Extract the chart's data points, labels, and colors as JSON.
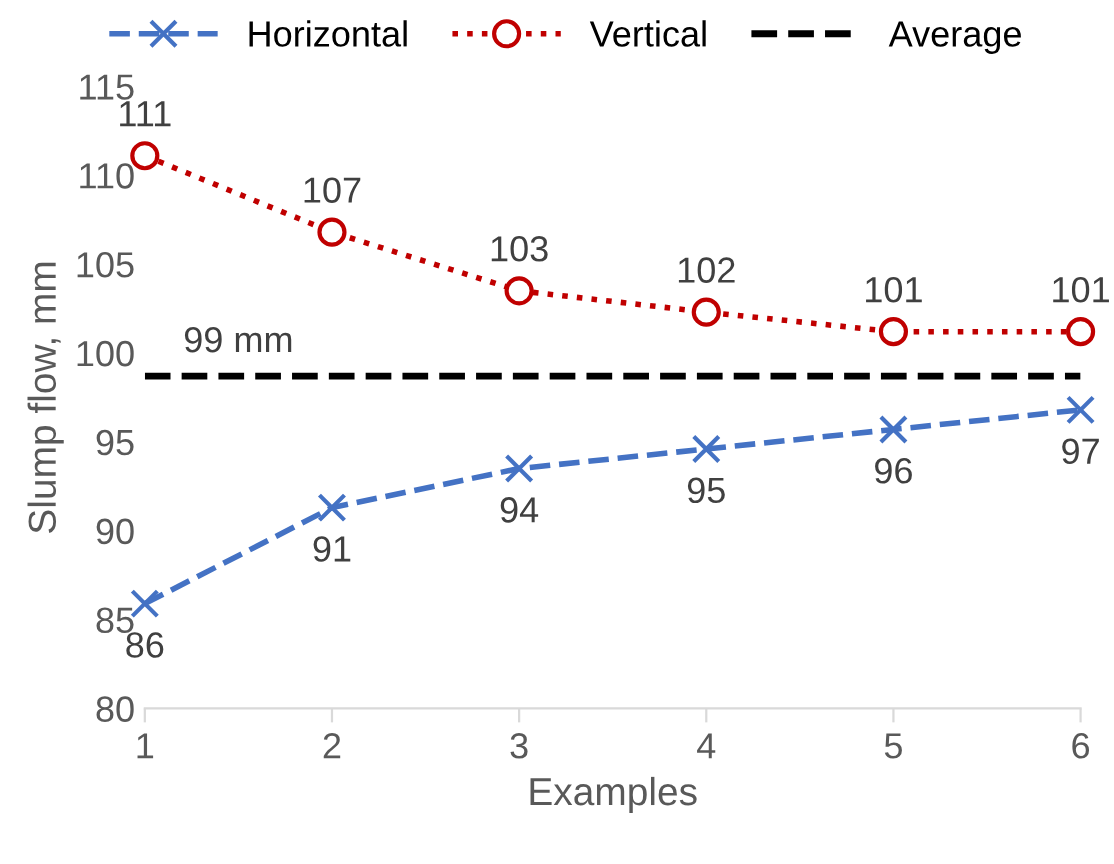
{
  "chart_data": {
    "type": "line",
    "xlabel": "Examples",
    "ylabel": "Slump flow, mm",
    "x": [
      1,
      2,
      3,
      4,
      5,
      6
    ],
    "xlim": [
      1,
      6
    ],
    "xticks": [
      1,
      2,
      3,
      4,
      5,
      6
    ],
    "ylim": [
      80,
      115
    ],
    "yticks": [
      80,
      85,
      90,
      95,
      100,
      105,
      110,
      115
    ],
    "series": [
      {
        "name": "Horizontal",
        "color": "#4472c4",
        "marker": "cross",
        "line_style": "dashed",
        "values": [
          85.9,
          91.3,
          93.5,
          94.6,
          95.7,
          96.8
        ],
        "value_labels": [
          "86",
          "91",
          "94",
          "95",
          "96",
          "97"
        ]
      },
      {
        "name": "Vertical",
        "color": "#c00000",
        "marker": "circle",
        "line_style": "dotted",
        "values": [
          111.1,
          106.8,
          103.5,
          102.3,
          101.2,
          101.2
        ],
        "value_labels": [
          "111",
          "107",
          "103",
          "102",
          "101",
          "101"
        ]
      }
    ],
    "ref_lines": [
      {
        "axis": "y",
        "value": 98.7,
        "label": "Average",
        "color": "#000000",
        "line_style": "dashed"
      }
    ],
    "annotations": [
      {
        "text": "99 mm",
        "x": 1.5,
        "y": 98.7
      }
    ],
    "grid": false,
    "legend": "top"
  }
}
